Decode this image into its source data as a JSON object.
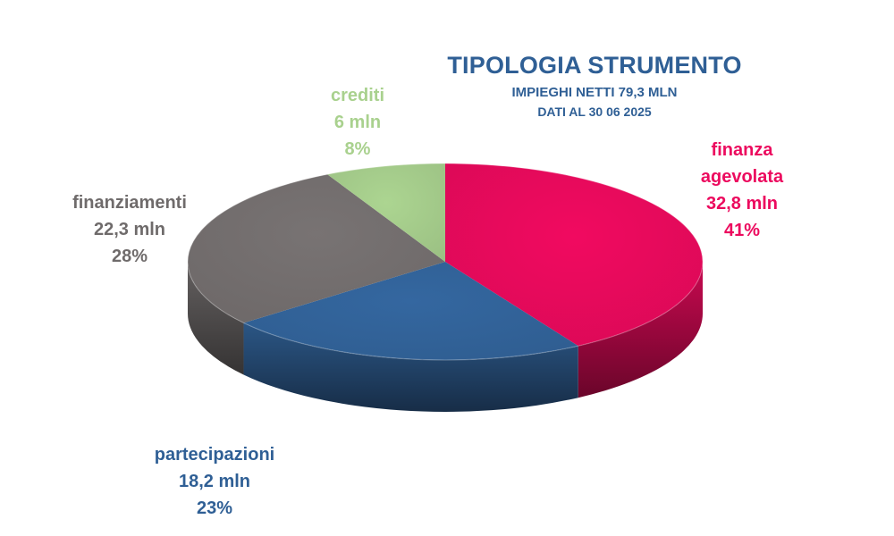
{
  "chart_data": {
    "type": "pie",
    "title": "TIPOLOGIA STRUMENTO",
    "subtitle": "IMPIEGHI NETTI 79,3 MLN",
    "date": "DATI AL 30 06 2025",
    "slices": [
      {
        "name": "finanza agevolata",
        "label_lines": [
          "finanza",
          "agevolata"
        ],
        "value": 32.8,
        "value_label": "32,8 mln",
        "percent_label": "41%",
        "color": "#EC0A5E"
      },
      {
        "name": "partecipazioni",
        "label_lines": [
          "partecipazioni"
        ],
        "value": 18.2,
        "value_label": "18,2 mln",
        "percent_label": "23%",
        "color": "#33659D"
      },
      {
        "name": "finanziamenti",
        "label_lines": [
          "finanziamenti"
        ],
        "value": 22.3,
        "value_label": "22,3 mln",
        "percent_label": "28%",
        "color": "#767171"
      },
      {
        "name": "crediti",
        "label_lines": [
          "crediti"
        ],
        "value": 6,
        "value_label": "6 mln",
        "percent_label": "8%",
        "color": "#A9D18E"
      }
    ]
  }
}
